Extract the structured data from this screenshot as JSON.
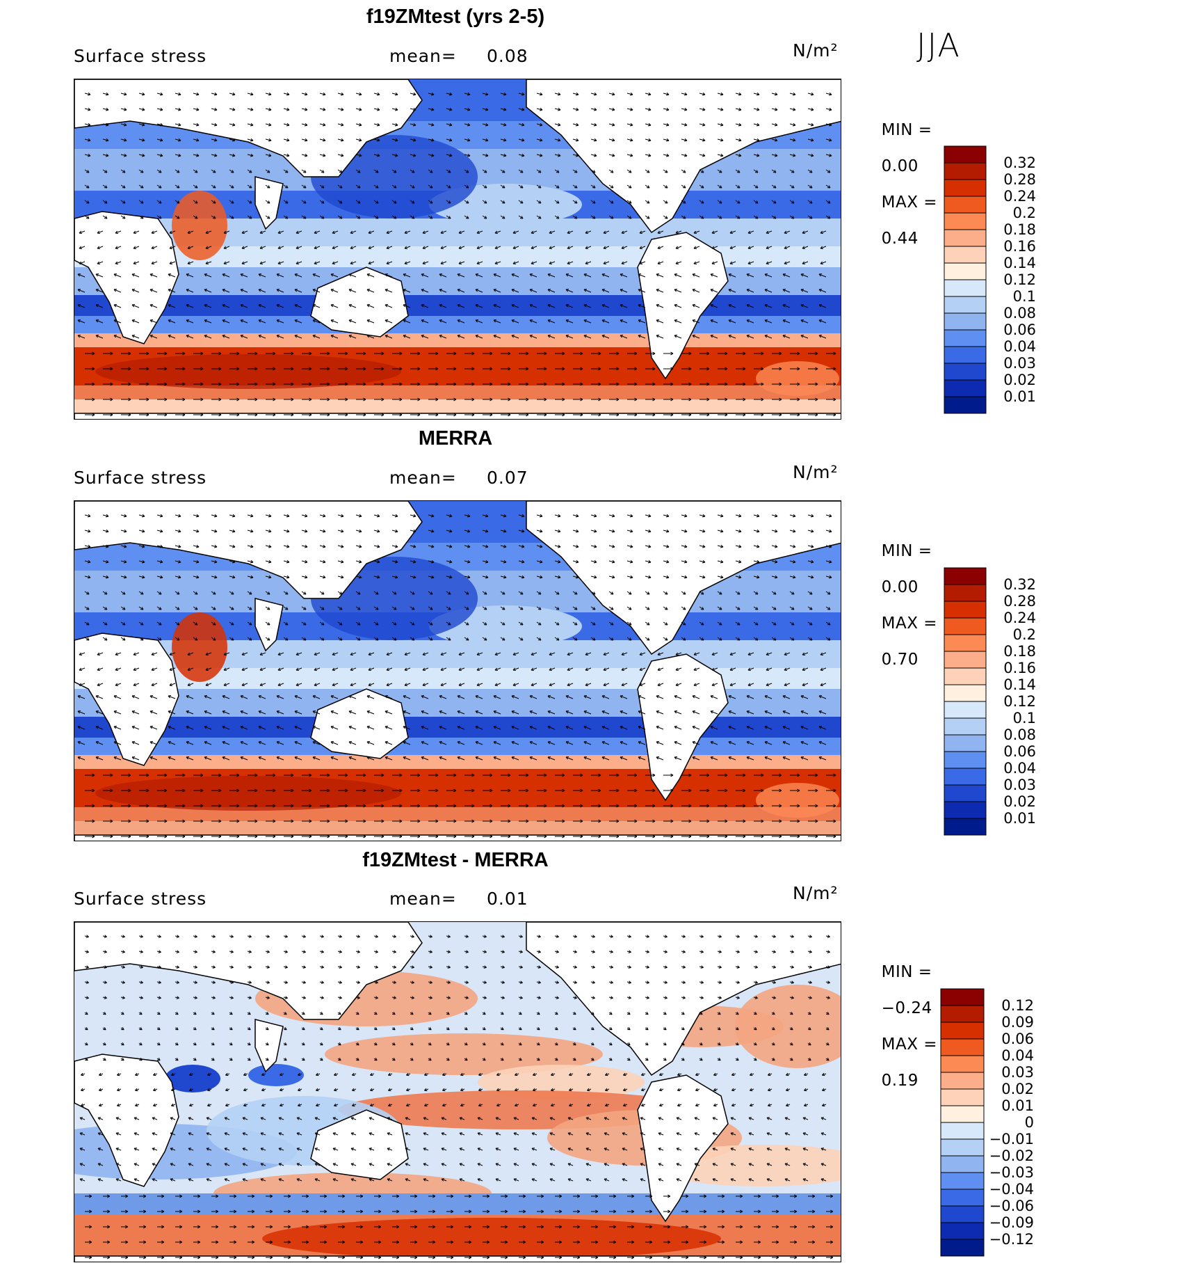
{
  "season": "JJA",
  "panels": [
    {
      "id": "model",
      "title": "f19ZMtest (yrs 2-5)",
      "variable": "Surface stress",
      "mean_label": "mean=",
      "mean_value": "0.08",
      "units": "N/m²",
      "min_label": "MIN =",
      "min_value": "0.00",
      "max_label": "MAX =",
      "max_value": "0.44"
    },
    {
      "id": "obs",
      "title": "MERRA",
      "variable": "Surface stress",
      "mean_label": "mean=",
      "mean_value": "0.07",
      "units": "N/m²",
      "min_label": "MIN =",
      "min_value": "0.00",
      "max_label": "MAX =",
      "max_value": "0.70"
    },
    {
      "id": "diff",
      "title": "f19ZMtest - MERRA",
      "variable": "Surface stress",
      "mean_label": "mean=",
      "mean_value": "0.01",
      "units": "N/m²",
      "min_label": "MIN =",
      "min_value": "−0.24",
      "max_label": "MAX =",
      "max_value": "0.19"
    }
  ],
  "chart_data": [
    {
      "type": "heatmap",
      "title": "f19ZMtest (yrs 2-5)",
      "variable": "Surface stress",
      "units": "N/m²",
      "mean": 0.08,
      "min": 0.0,
      "max": 0.44,
      "colorbar_levels": [
        "0.32",
        "0.28",
        "0.24",
        "0.2",
        "0.18",
        "0.16",
        "0.14",
        "0.12",
        "0.1",
        "0.08",
        "0.06",
        "0.04",
        "0.03",
        "0.02",
        "0.01"
      ],
      "colorbar_colors": [
        "#8b0000",
        "#b41c00",
        "#d73000",
        "#ee5a20",
        "#fb8a55",
        "#fcae8a",
        "#fdd2b8",
        "#fff0e0",
        "#d6e8fa",
        "#b4d0f5",
        "#8fb4f0",
        "#5f8ff0",
        "#3a6ae6",
        "#1f48cf",
        "#0c2bb0",
        "#001b8c"
      ]
    },
    {
      "type": "heatmap",
      "title": "MERRA",
      "variable": "Surface stress",
      "units": "N/m²",
      "mean": 0.07,
      "min": 0.0,
      "max": 0.7,
      "colorbar_levels": [
        "0.32",
        "0.28",
        "0.24",
        "0.2",
        "0.18",
        "0.16",
        "0.14",
        "0.12",
        "0.1",
        "0.08",
        "0.06",
        "0.04",
        "0.03",
        "0.02",
        "0.01"
      ],
      "colorbar_colors": [
        "#8b0000",
        "#b41c00",
        "#d73000",
        "#ee5a20",
        "#fb8a55",
        "#fcae8a",
        "#fdd2b8",
        "#fff0e0",
        "#d6e8fa",
        "#b4d0f5",
        "#8fb4f0",
        "#5f8ff0",
        "#3a6ae6",
        "#1f48cf",
        "#0c2bb0",
        "#001b8c"
      ]
    },
    {
      "type": "heatmap",
      "title": "f19ZMtest - MERRA",
      "variable": "Surface stress",
      "units": "N/m²",
      "mean": 0.01,
      "min": -0.24,
      "max": 0.19,
      "colorbar_levels": [
        "0.12",
        "0.09",
        "0.06",
        "0.04",
        "0.03",
        "0.02",
        "0.01",
        "0",
        "−0.01",
        "−0.02",
        "−0.03",
        "−0.04",
        "−0.06",
        "−0.09",
        "−0.12"
      ],
      "colorbar_colors": [
        "#8b0000",
        "#b41c00",
        "#d73000",
        "#ee5a20",
        "#fb8a55",
        "#fcae8a",
        "#fdd2b8",
        "#fff0e0",
        "#d6e8fa",
        "#b4d0f5",
        "#8fb4f0",
        "#5f8ff0",
        "#3a6ae6",
        "#1f48cf",
        "#0c2bb0",
        "#001b8c"
      ]
    }
  ]
}
